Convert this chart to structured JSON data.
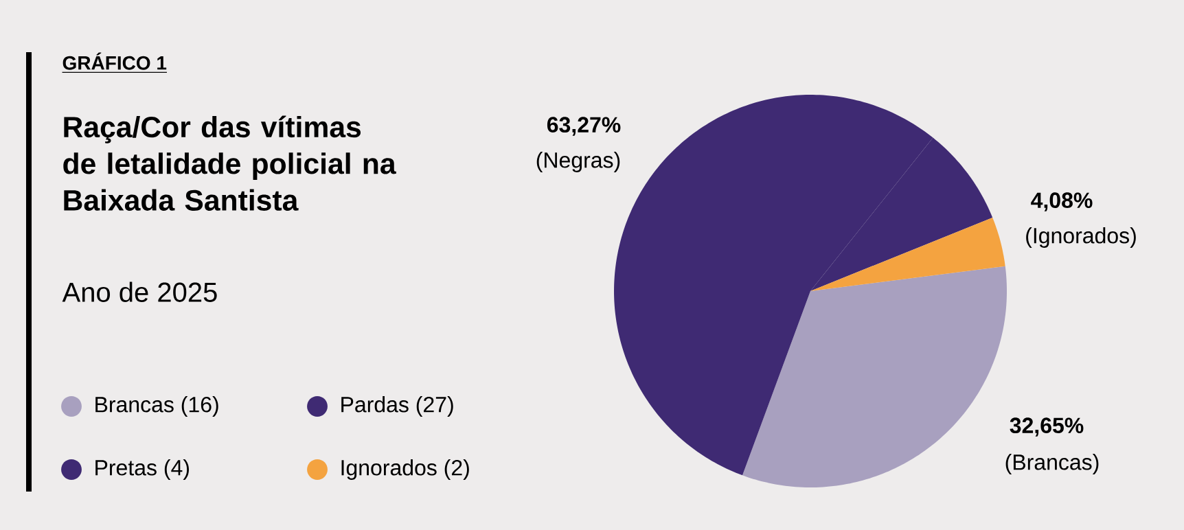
{
  "chart_data": {
    "type": "pie",
    "title": "Raça/Cor das vítimas de letalidade policial na Baixada Santista",
    "subtitle": "Ano de 2025",
    "annotations": [
      "GRÁFICO 1",
      "63,27%",
      "(Negras)",
      "4,08%",
      "(Ignorados)",
      "32,65%",
      "(Brancas)"
    ],
    "categories": [
      "Brancas (16)",
      "Pardas (27)",
      "Pretas (4)",
      "Ignorados (2)"
    ],
    "values": [
      16,
      27,
      4,
      2
    ],
    "colors": [
      "#a8a0bf",
      "#3f2a73",
      "#3f2a73",
      "#f4a340"
    ],
    "legend": "left"
  }
}
